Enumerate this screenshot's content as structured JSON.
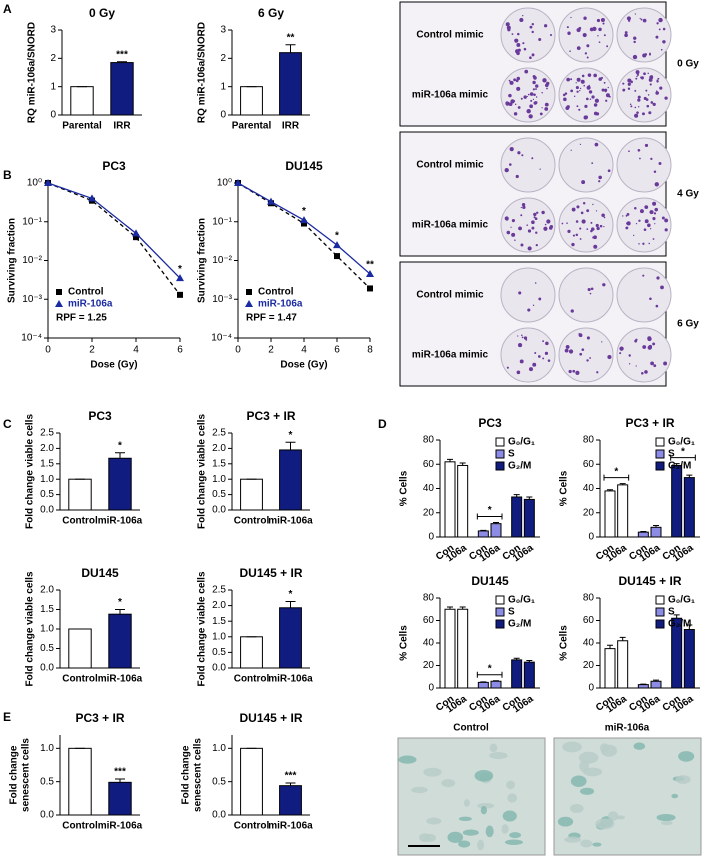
{
  "panels": [
    "A",
    "B",
    "C",
    "D",
    "E"
  ],
  "colony_assay": {
    "rows": [
      "Control mimic",
      "miR-106a mimic"
    ],
    "doses": [
      "0 Gy",
      "4 Gy",
      "6 Gy"
    ]
  },
  "micrographs": {
    "labels": [
      "Control",
      "miR-106a"
    ]
  },
  "chart_data": [
    {
      "type": "bar",
      "title": "0 Gy",
      "ylabel": [
        "RQ miR-106a/SNORD"
      ],
      "categories": [
        "Parental",
        "IRR"
      ],
      "values": [
        1,
        1.85
      ],
      "errors": [
        0,
        0.03
      ],
      "colors": [
        "#ffffff",
        "#101c80"
      ],
      "significance": [
        null,
        "***"
      ],
      "ylim": [
        0,
        3
      ],
      "yticks": [
        0,
        1,
        2,
        3
      ]
    },
    {
      "type": "bar",
      "title": "6 Gy",
      "ylabel": [
        "RQ miR-106a/SNORD"
      ],
      "categories": [
        "Parental",
        "IRR"
      ],
      "values": [
        1,
        2.2
      ],
      "errors": [
        0,
        0.28
      ],
      "colors": [
        "#ffffff",
        "#101c80"
      ],
      "significance": [
        null,
        "**"
      ],
      "ylim": [
        0,
        3
      ],
      "yticks": [
        0,
        1,
        2,
        3
      ]
    },
    {
      "type": "line",
      "title": "PC3",
      "xlabel": "Dose (Gy)",
      "ylabel": "Surviving fraction",
      "log_y": true,
      "x": [
        0,
        2,
        4,
        6
      ],
      "series": [
        {
          "name": "Control",
          "color": "#000000",
          "marker": "square",
          "dash": true,
          "values": [
            1,
            0.35,
            0.04,
            0.0013
          ]
        },
        {
          "name": "miR-106a",
          "color": "#1a2aa0",
          "marker": "triangle",
          "dash": false,
          "values": [
            1,
            0.4,
            0.05,
            0.0035
          ]
        }
      ],
      "significance": [
        null,
        null,
        null,
        "*"
      ],
      "annotation": "RPF = 1.25",
      "xlim": [
        0,
        6
      ],
      "xticks": [
        0,
        2,
        4,
        6
      ],
      "ylim": [
        0.0001,
        1
      ],
      "yticks": [
        {
          "value": 1,
          "label": "10⁰"
        },
        {
          "value": 0.1,
          "label": "10⁻¹"
        },
        {
          "value": 0.01,
          "label": "10⁻²"
        },
        {
          "value": 0.001,
          "label": "10⁻³"
        },
        {
          "value": 0.0001,
          "label": "10⁻⁴"
        }
      ]
    },
    {
      "type": "line",
      "title": "DU145",
      "xlabel": "Dose (Gy)",
      "ylabel": "Surviving fraction",
      "log_y": true,
      "x": [
        0,
        2,
        4,
        6,
        8
      ],
      "series": [
        {
          "name": "Control",
          "color": "#000000",
          "marker": "square",
          "dash": true,
          "values": [
            1,
            0.3,
            0.09,
            0.013,
            0.0019
          ]
        },
        {
          "name": "miR-106a",
          "color": "#1a2aa0",
          "marker": "triangle",
          "dash": false,
          "values": [
            1,
            0.33,
            0.11,
            0.025,
            0.0045
          ]
        }
      ],
      "significance": [
        null,
        null,
        "*",
        "*",
        "**"
      ],
      "annotation": "RPF = 1.47",
      "xlim": [
        0,
        8
      ],
      "xticks": [
        0,
        2,
        4,
        6,
        8
      ],
      "ylim": [
        0.0001,
        1
      ],
      "yticks": [
        {
          "value": 1,
          "label": "10⁰"
        },
        {
          "value": 0.1,
          "label": "10⁻¹"
        },
        {
          "value": 0.01,
          "label": "10⁻²"
        },
        {
          "value": 0.001,
          "label": "10⁻³"
        },
        {
          "value": 0.0001,
          "label": "10⁻⁴"
        }
      ]
    },
    {
      "type": "bar",
      "title": "PC3",
      "ylabel": [
        "Fold change viable cells"
      ],
      "categories": [
        "Control",
        "miR-106a"
      ],
      "values": [
        1,
        1.68
      ],
      "errors": [
        0,
        0.18
      ],
      "colors": [
        "#ffffff",
        "#101c80"
      ],
      "significance": [
        null,
        "*"
      ],
      "ylim": [
        0,
        2.5
      ],
      "yticks": [
        {
          "value": 0,
          "label": "0.0"
        },
        0.5,
        {
          "value": 1,
          "label": "1.0"
        },
        1.5,
        {
          "value": 2,
          "label": "2.0"
        },
        2.5
      ]
    },
    {
      "type": "bar",
      "title": "PC3 + IR",
      "ylabel": [
        "Fold change viable cells"
      ],
      "categories": [
        "Control",
        "miR-106a"
      ],
      "values": [
        1,
        1.95
      ],
      "errors": [
        0,
        0.25
      ],
      "colors": [
        "#ffffff",
        "#101c80"
      ],
      "significance": [
        null,
        "*"
      ],
      "ylim": [
        0,
        2.5
      ],
      "yticks": [
        {
          "value": 0,
          "label": "0.0"
        },
        0.5,
        {
          "value": 1,
          "label": "1.0"
        },
        1.5,
        {
          "value": 2,
          "label": "2.0"
        },
        2.5
      ]
    },
    {
      "type": "bar",
      "title": "DU145",
      "ylabel": [
        "Fold change viable cells"
      ],
      "categories": [
        "Control",
        "miR-106a"
      ],
      "values": [
        1,
        1.38
      ],
      "errors": [
        0,
        0.12
      ],
      "colors": [
        "#ffffff",
        "#101c80"
      ],
      "significance": [
        null,
        "*"
      ],
      "ylim": [
        0,
        2
      ],
      "yticks": [
        {
          "value": 0,
          "label": "0.0"
        },
        0.5,
        {
          "value": 1,
          "label": "1.0"
        },
        1.5,
        {
          "value": 2,
          "label": "2.0"
        }
      ]
    },
    {
      "type": "bar",
      "title": "DU145 + IR",
      "ylabel": [
        "Fold change viable cells"
      ],
      "categories": [
        "Control",
        "miR-106a"
      ],
      "values": [
        1,
        1.93
      ],
      "errors": [
        0,
        0.2
      ],
      "colors": [
        "#ffffff",
        "#101c80"
      ],
      "significance": [
        null,
        "*"
      ],
      "ylim": [
        0,
        2.5
      ],
      "yticks": [
        {
          "value": 0,
          "label": "0.0"
        },
        0.5,
        {
          "value": 1,
          "label": "1.0"
        },
        1.5,
        {
          "value": 2,
          "label": "2.0"
        },
        2.5
      ]
    },
    {
      "type": "grouped_bar",
      "title": "PC3",
      "ylabel": "% Cells",
      "categories": [
        "Con",
        "106a"
      ],
      "ylim": [
        0,
        80
      ],
      "yticks": [
        0,
        20,
        40,
        60,
        80
      ],
      "series": [
        {
          "name": "G₀/G₁",
          "color": "#ffffff",
          "values": [
            62,
            59
          ],
          "errors": [
            2,
            2
          ]
        },
        {
          "name": "S",
          "color": "#8c8ce6",
          "values": [
            5,
            11
          ],
          "errors": [
            0.5,
            1
          ],
          "significance": "*"
        },
        {
          "name": "G₂/M",
          "color": "#101c80",
          "values": [
            33,
            31
          ],
          "errors": [
            2,
            2
          ]
        }
      ]
    },
    {
      "type": "grouped_bar",
      "title": "PC3 + IR",
      "ylabel": "% Cells",
      "categories": [
        "Con",
        "106a"
      ],
      "ylim": [
        0,
        80
      ],
      "yticks": [
        0,
        20,
        40,
        60,
        80
      ],
      "series": [
        {
          "name": "G₀/G₁",
          "color": "#ffffff",
          "values": [
            38,
            43
          ],
          "errors": [
            1,
            1
          ],
          "significance": "*"
        },
        {
          "name": "S",
          "color": "#8c8ce6",
          "values": [
            4,
            8
          ],
          "errors": [
            0.5,
            1.5
          ]
        },
        {
          "name": "G₂/M",
          "color": "#101c80",
          "values": [
            59,
            49
          ],
          "errors": [
            1.5,
            2
          ],
          "significance": "*"
        }
      ]
    },
    {
      "type": "grouped_bar",
      "title": "DU145",
      "ylabel": "% Cells",
      "categories": [
        "Con",
        "106a"
      ],
      "ylim": [
        0,
        80
      ],
      "yticks": [
        0,
        20,
        40,
        60,
        80
      ],
      "series": [
        {
          "name": "G₀/G₁",
          "color": "#ffffff",
          "values": [
            70,
            70
          ],
          "errors": [
            2,
            2
          ]
        },
        {
          "name": "S",
          "color": "#8c8ce6",
          "values": [
            5,
            6
          ],
          "errors": [
            0.5,
            0.5
          ],
          "significance": "*"
        },
        {
          "name": "G₂/M",
          "color": "#101c80",
          "values": [
            25,
            23
          ],
          "errors": [
            1.5,
            1.5
          ]
        }
      ]
    },
    {
      "type": "grouped_bar",
      "title": "DU145 + IR",
      "ylabel": "% Cells",
      "categories": [
        "Con",
        "106a"
      ],
      "ylim": [
        0,
        80
      ],
      "yticks": [
        0,
        20,
        40,
        60,
        80
      ],
      "series": [
        {
          "name": "G₀/G₁",
          "color": "#ffffff",
          "values": [
            35,
            42
          ],
          "errors": [
            3,
            3
          ]
        },
        {
          "name": "S",
          "color": "#8c8ce6",
          "values": [
            3,
            6
          ],
          "errors": [
            0.5,
            1
          ]
        },
        {
          "name": "G₂/M",
          "color": "#101c80",
          "values": [
            62,
            52
          ],
          "errors": [
            3,
            4
          ]
        }
      ]
    },
    {
      "type": "bar",
      "title": "PC3 + IR",
      "ylabel": [
        "Fold change",
        "senescent cells"
      ],
      "categories": [
        "Control",
        "miR-106a"
      ],
      "values": [
        1,
        0.49
      ],
      "errors": [
        0,
        0.05
      ],
      "colors": [
        "#ffffff",
        "#101c80"
      ],
      "significance": [
        null,
        "***"
      ],
      "ylim": [
        0,
        1.2
      ],
      "yticks": [
        {
          "value": 0,
          "label": "0.0"
        },
        0.5,
        {
          "value": 1,
          "label": "1.0"
        }
      ]
    },
    {
      "type": "bar",
      "title": "DU145 + IR",
      "ylabel": [
        "Fold change",
        "senescent cells"
      ],
      "categories": [
        "Control",
        "miR-106a"
      ],
      "values": [
        1,
        0.44
      ],
      "errors": [
        0,
        0.04
      ],
      "colors": [
        "#ffffff",
        "#101c80"
      ],
      "significance": [
        null,
        "***"
      ],
      "ylim": [
        0,
        1.2
      ],
      "yticks": [
        {
          "value": 0,
          "label": "0.0"
        },
        0.5,
        {
          "value": 1,
          "label": "1.0"
        }
      ]
    }
  ]
}
